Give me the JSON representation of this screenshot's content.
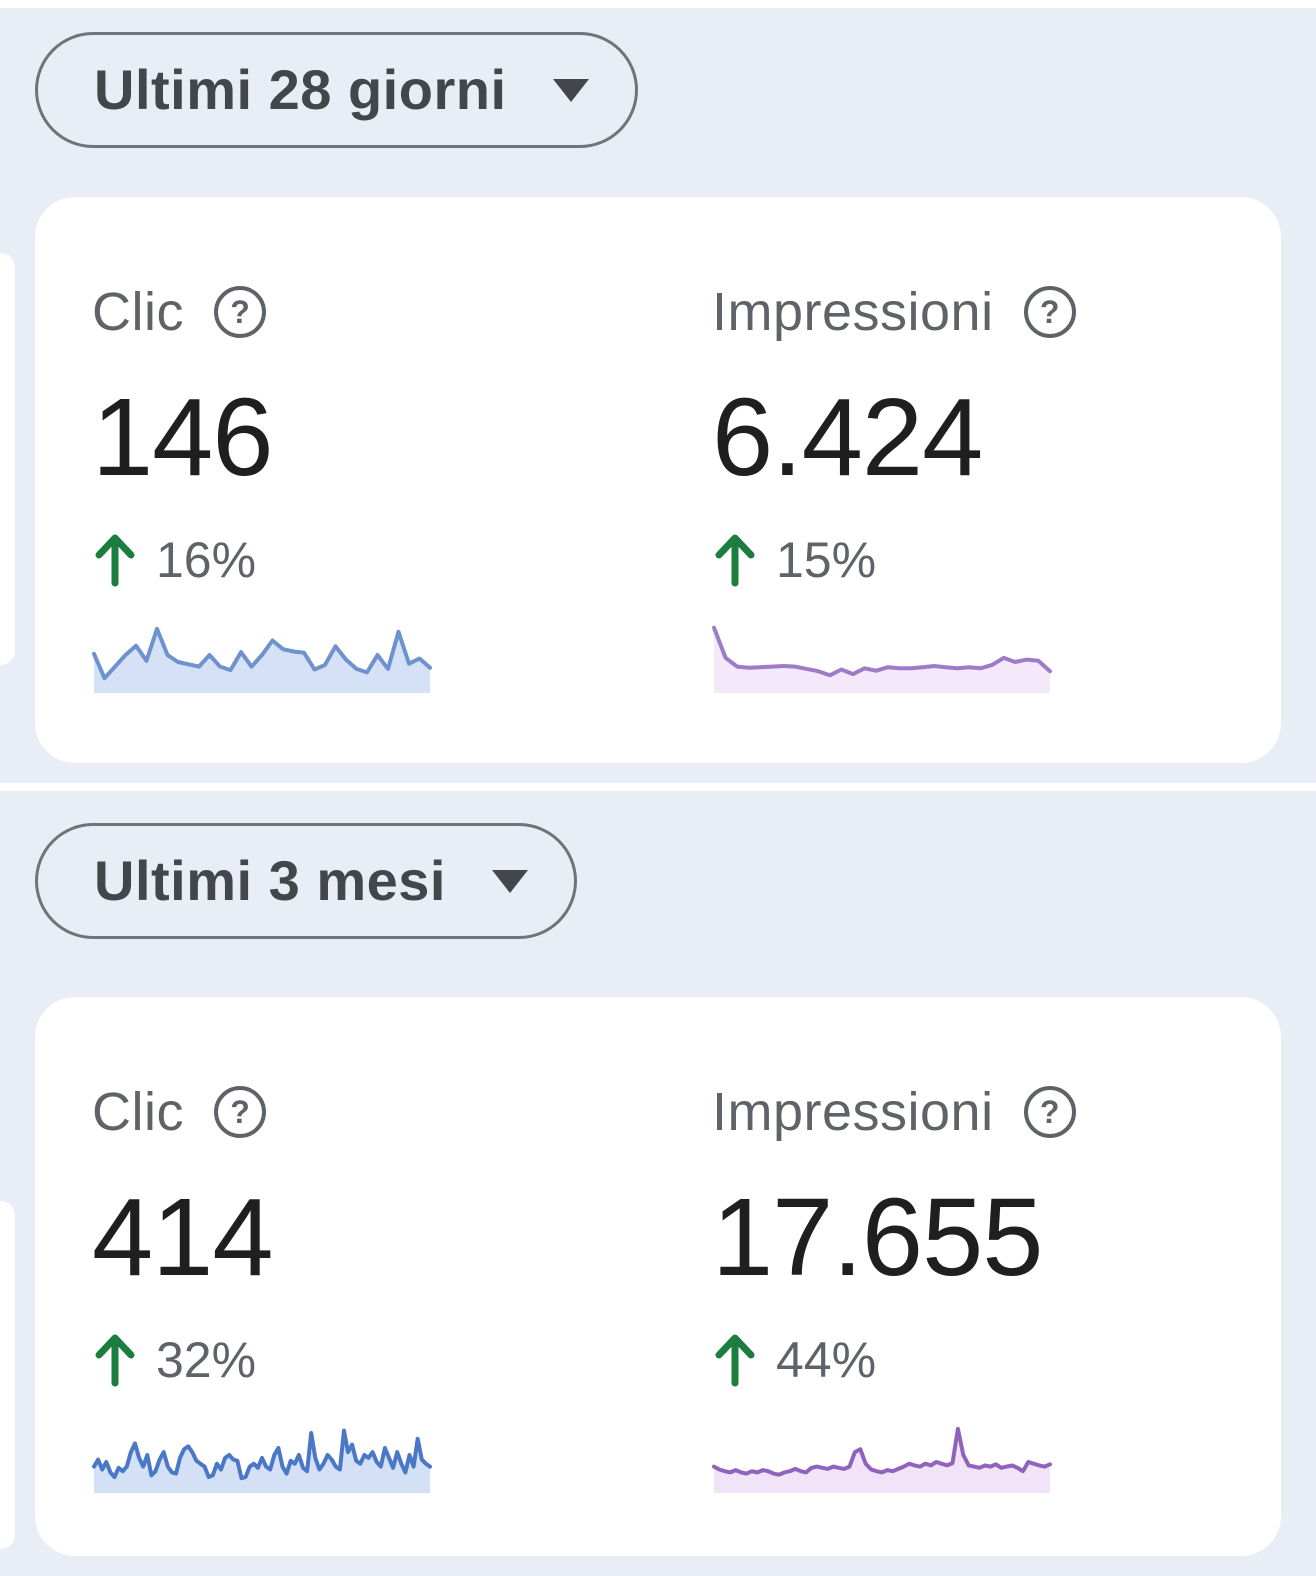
{
  "icons": {
    "help_glyph": "?",
    "dropdown_arrow": "triangle-down",
    "delta_arrow": "arrow-up"
  },
  "colors": {
    "background": "#e9edf6",
    "card": "#ffffff",
    "seam": "#ffffff",
    "value_text": "#1f1f1f",
    "label_text": "#5f6368",
    "delta_text": "#5f6368",
    "delta_up_green": "#1b7d3e",
    "dropdown_text": "#43474b",
    "dropdown_border": "#6f7479"
  },
  "sections": [
    {
      "name": "last-28-days",
      "date_range": {
        "label": "Ultimi 28 giorni"
      },
      "metrics": [
        {
          "id": "clicks",
          "label": "Clic",
          "value": "146",
          "delta": "16%",
          "delta_direction": "up",
          "line_color": "#6d92cd",
          "fill_color": "#d5e1f6",
          "sparkline": [
            0.52,
            0.1,
            0.3,
            0.5,
            0.66,
            0.4,
            0.95,
            0.5,
            0.38,
            0.34,
            0.3,
            0.5,
            0.3,
            0.24,
            0.55,
            0.3,
            0.5,
            0.75,
            0.6,
            0.56,
            0.54,
            0.25,
            0.33,
            0.65,
            0.42,
            0.26,
            0.2,
            0.5,
            0.26,
            0.9,
            0.35,
            0.44,
            0.28
          ]
        },
        {
          "id": "impressions",
          "label": "Impressioni",
          "value": "6.424",
          "delta": "15%",
          "delta_direction": "up",
          "line_color": "#9d7bc6",
          "fill_color": "#f3e9fb",
          "sparkline": [
            0.97,
            0.45,
            0.3,
            0.28,
            0.29,
            0.3,
            0.31,
            0.3,
            0.26,
            0.22,
            0.15,
            0.25,
            0.17,
            0.27,
            0.23,
            0.29,
            0.27,
            0.27,
            0.29,
            0.31,
            0.29,
            0.27,
            0.29,
            0.27,
            0.33,
            0.45,
            0.38,
            0.42,
            0.4,
            0.22
          ]
        }
      ]
    },
    {
      "name": "last-3-months",
      "date_range": {
        "label": "Ultimi 3 mesi"
      },
      "metrics": [
        {
          "id": "clicks",
          "label": "Clic",
          "value": "414",
          "delta": "32%",
          "delta_direction": "up",
          "line_color": "#4a78c6",
          "fill_color": "#d4e0f6",
          "sparkline": [
            0.3,
            0.42,
            0.25,
            0.38,
            0.2,
            0.12,
            0.28,
            0.22,
            0.3,
            0.55,
            0.7,
            0.45,
            0.3,
            0.5,
            0.15,
            0.22,
            0.42,
            0.55,
            0.3,
            0.2,
            0.18,
            0.45,
            0.6,
            0.65,
            0.55,
            0.4,
            0.35,
            0.3,
            0.12,
            0.15,
            0.35,
            0.25,
            0.45,
            0.5,
            0.42,
            0.4,
            0.1,
            0.12,
            0.3,
            0.35,
            0.28,
            0.45,
            0.3,
            0.25,
            0.5,
            0.62,
            0.3,
            0.18,
            0.4,
            0.35,
            0.5,
            0.28,
            0.22,
            0.88,
            0.45,
            0.25,
            0.35,
            0.5,
            0.42,
            0.3,
            0.25,
            0.92,
            0.55,
            0.68,
            0.4,
            0.35,
            0.5,
            0.45,
            0.55,
            0.38,
            0.3,
            0.62,
            0.45,
            0.28,
            0.55,
            0.35,
            0.2,
            0.5,
            0.3,
            0.78,
            0.42,
            0.35,
            0.3
          ]
        },
        {
          "id": "impressions",
          "label": "Impressioni",
          "value": "17.655",
          "delta": "44%",
          "delta_direction": "up",
          "line_color": "#8f63bd",
          "fill_color": "#f2e4f8",
          "sparkline": [
            0.3,
            0.25,
            0.22,
            0.2,
            0.24,
            0.2,
            0.18,
            0.22,
            0.2,
            0.24,
            0.22,
            0.18,
            0.16,
            0.2,
            0.22,
            0.26,
            0.22,
            0.2,
            0.28,
            0.3,
            0.28,
            0.26,
            0.3,
            0.28,
            0.26,
            0.3,
            0.55,
            0.6,
            0.35,
            0.25,
            0.22,
            0.2,
            0.24,
            0.22,
            0.26,
            0.3,
            0.35,
            0.32,
            0.3,
            0.35,
            0.32,
            0.38,
            0.35,
            0.32,
            0.36,
            0.95,
            0.5,
            0.32,
            0.3,
            0.28,
            0.32,
            0.3,
            0.34,
            0.28,
            0.3,
            0.32,
            0.28,
            0.22,
            0.38,
            0.35,
            0.32,
            0.3,
            0.34
          ]
        }
      ]
    }
  ]
}
